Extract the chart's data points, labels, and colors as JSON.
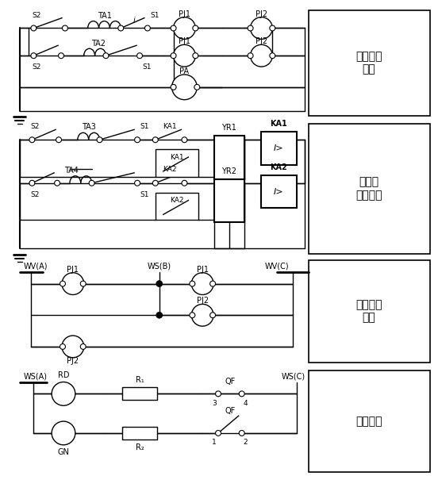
{
  "background": "#ffffff",
  "fig_w": 5.52,
  "fig_h": 6.29,
  "dpi": 100,
  "sections": {
    "s1_label": "电流测量\n回路",
    "s2_label": "过电流\n保护回路",
    "s3_label": "电压测量\n回路",
    "s4_label": "信号回路"
  }
}
